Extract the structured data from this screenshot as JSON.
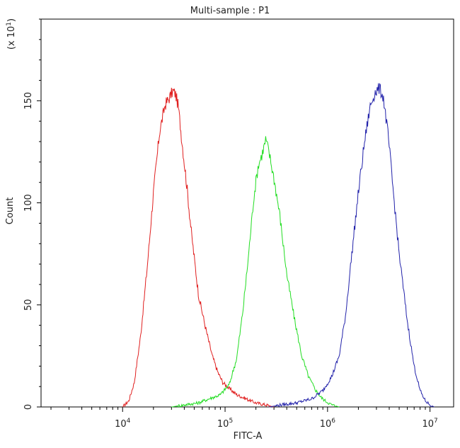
{
  "chart_data": {
    "type": "line",
    "title": "Multi-sample : P1",
    "xlabel": "FITC-A",
    "ylabel": "Count",
    "y_multiplier": "(x 10",
    "y_multiplier_exp": "1",
    "y_multiplier_close": ")",
    "x_scale": "log",
    "xlim": [
      1600.0,
      17000000.0
    ],
    "ylim": [
      0,
      190
    ],
    "grid": false,
    "legend": "none",
    "x_ticks": [
      {
        "value": 10000,
        "base": "10",
        "exp": "4"
      },
      {
        "value": 100000,
        "base": "10",
        "exp": "5"
      },
      {
        "value": 1000000,
        "base": "10",
        "exp": "6"
      },
      {
        "value": 10000000,
        "base": "10",
        "exp": "7"
      }
    ],
    "y_ticks": [
      {
        "value": 0,
        "label": "0"
      },
      {
        "value": 50,
        "label": "50"
      },
      {
        "value": 100,
        "label": "100"
      },
      {
        "value": 150,
        "label": "150"
      }
    ],
    "series": [
      {
        "color": "#e02020",
        "x": [
          10000,
          11500,
          13000,
          15000,
          17500,
          20000,
          23000,
          26000,
          29000,
          31000,
          33000,
          35000,
          38000,
          42000,
          47000,
          55000,
          65000,
          75000,
          85000,
          95000,
          110000,
          130000,
          160000,
          200000,
          250000,
          300000
        ],
        "y": [
          0,
          3,
          12,
          35,
          70,
          105,
          135,
          148,
          152,
          155,
          153,
          147,
          130,
          110,
          85,
          55,
          38,
          25,
          17,
          12,
          9,
          6,
          4,
          2,
          1,
          0
        ]
      },
      {
        "color": "#22dd22",
        "x": [
          30000,
          40000,
          55000,
          70000,
          90000,
          110000,
          130000,
          150000,
          170000,
          190000,
          210000,
          230000,
          250000,
          270000,
          300000,
          340000,
          400000,
          480000,
          560000,
          650000,
          750000,
          850000,
          950000,
          1100000,
          1300000
        ],
        "y": [
          0,
          1,
          2,
          4,
          6,
          11,
          24,
          48,
          75,
          102,
          118,
          124,
          131,
          124,
          112,
          95,
          65,
          42,
          25,
          15,
          9,
          5,
          3,
          1,
          0
        ]
      },
      {
        "color": "#2222aa",
        "x": [
          270000,
          350000,
          500000,
          700000,
          900000,
          1100000,
          1300000,
          1500000,
          1700000,
          2000000,
          2300000,
          2600000,
          2900000,
          3200000,
          3500000,
          3900000,
          4300000,
          5000000,
          6000000,
          7000000,
          8000000,
          9000000,
          10000000,
          11000000
        ],
        "y": [
          0,
          1,
          2,
          4,
          8,
          15,
          25,
          45,
          72,
          105,
          130,
          147,
          154,
          156,
          152,
          133,
          110,
          75,
          42,
          20,
          8,
          3,
          1,
          0
        ]
      }
    ]
  }
}
